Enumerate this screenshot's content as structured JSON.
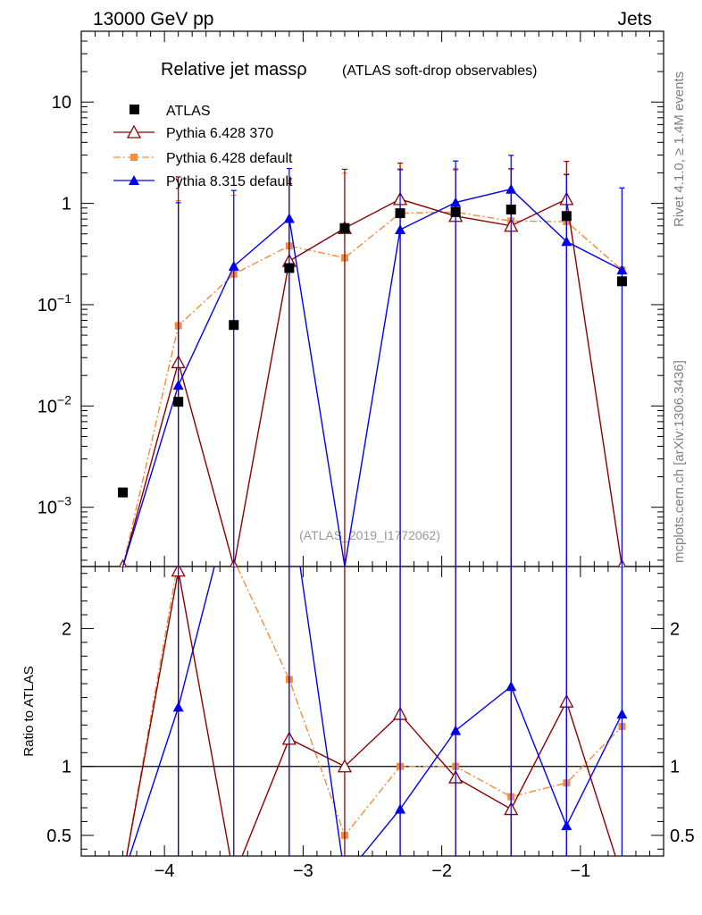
{
  "header": {
    "left": "13000 GeV pp",
    "right": "Jets"
  },
  "side_labels": {
    "rivet": "Rivet 4.1.0, ≥ 1.4M events",
    "mcplots": "mcplots.cern.ch [arXiv:1306.3436]"
  },
  "chart_data": {
    "type": "scatter",
    "title": "Relative jet massρ",
    "title_suffix": "(ATLAS soft-drop observables)",
    "watermark": "(ATLAS_2019_I1772062)",
    "xlim": [
      -4.6,
      -0.4
    ],
    "xticks": [
      {
        "value": -4,
        "label": "−4"
      },
      {
        "value": -3,
        "label": "−3"
      },
      {
        "value": -2,
        "label": "−2"
      },
      {
        "value": -1,
        "label": "−1"
      }
    ],
    "main": {
      "yscale": "log",
      "ylim": [
        0.00026,
        50
      ],
      "yticks": [
        {
          "value": 0.001,
          "base": "10",
          "exp": "−3"
        },
        {
          "value": 0.01,
          "base": "10",
          "exp": "−2"
        },
        {
          "value": 0.1,
          "base": "10",
          "exp": "−1"
        },
        {
          "value": 1,
          "base": "1",
          "exp": ""
        },
        {
          "value": 10,
          "base": "10",
          "exp": ""
        }
      ]
    },
    "ratio": {
      "ylabel": "Ratio to ATLAS",
      "ylim": [
        0.35,
        2.45
      ],
      "yticks": [
        {
          "value": 0.5,
          "label": "0.5"
        },
        {
          "value": 1,
          "label": "1"
        },
        {
          "value": 2,
          "label": "2"
        }
      ]
    },
    "x": [
      -4.3,
      -3.9,
      -3.5,
      -3.1,
      -2.7,
      -2.3,
      -1.9,
      -1.5,
      -1.1,
      -0.7
    ],
    "series": [
      {
        "name": "ATLAS",
        "color": "#000000",
        "marker": "square",
        "values": [
          0.0014,
          0.011,
          0.063,
          0.23,
          0.57,
          0.8,
          0.82,
          0.87,
          0.75,
          0.17
        ],
        "errors": [
          0,
          0,
          0,
          0,
          0,
          0,
          0,
          0,
          0,
          0
        ],
        "ratio": [
          1,
          1,
          1,
          1,
          1,
          1,
          1,
          1,
          1,
          1
        ]
      },
      {
        "name": "Pythia 6.428 370",
        "color": "#8b0000",
        "marker": "open-triangle",
        "line": "solid",
        "values": [
          0.00026,
          0.027,
          0.00026,
          0.27,
          0.57,
          1.1,
          0.75,
          0.6,
          1.1,
          0.00026
        ],
        "errors": [
          0,
          1.8,
          0,
          1.3,
          1.6,
          1.4,
          1.4,
          1.6,
          1.5,
          0
        ],
        "ratio": [
          0.2,
          2.42,
          0.2,
          1.2,
          1.0,
          1.38,
          0.92,
          0.69,
          1.47,
          0.2
        ]
      },
      {
        "name": "Pythia 6.428 default",
        "color": "#f28c3c",
        "marker": "square",
        "line": "dashdot",
        "values": [
          0.00026,
          0.062,
          0.2,
          0.38,
          0.29,
          0.8,
          0.82,
          0.67,
          0.66,
          0.22
        ],
        "errors": [
          0,
          1.0,
          1.0,
          1.3,
          1.7,
          1.4,
          1.4,
          1.5,
          1.3,
          1.2
        ],
        "ratio": [
          0.2,
          2.5,
          2.5,
          1.63,
          0.5,
          1.0,
          1.0,
          0.78,
          0.88,
          1.29
        ]
      },
      {
        "name": "Pythia 8.315 default",
        "color": "#0000ee",
        "marker": "triangle",
        "line": "solid",
        "values": [
          0.00026,
          0.016,
          0.24,
          0.71,
          0.00026,
          0.55,
          1.02,
          1.38,
          0.42,
          0.22
        ],
        "errors": [
          0,
          1.0,
          1.1,
          1.5,
          0,
          1.6,
          1.6,
          1.6,
          1.5,
          1.2
        ],
        "ratio": [
          0.2,
          1.43,
          3.0,
          3.0,
          0.2,
          0.69,
          1.26,
          1.58,
          0.57,
          1.38
        ]
      }
    ]
  }
}
